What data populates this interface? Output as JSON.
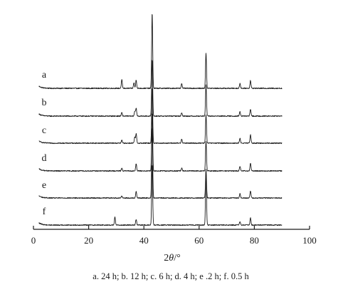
{
  "chart_data": {
    "type": "line",
    "subtype": "stacked-xrd-patterns",
    "title": "",
    "xlabel": "2θ/°",
    "ylabel": "",
    "xlim": [
      0,
      100
    ],
    "x_ticks": [
      0,
      20,
      40,
      60,
      80,
      100
    ],
    "x_tick_labels": [
      "0",
      "20",
      "40",
      "60",
      "80",
      "100"
    ],
    "x_range_plotted": [
      2,
      90
    ],
    "grid": false,
    "legend": "none",
    "series": [
      {
        "name": "a",
        "peaks": [
          {
            "x": 32.0,
            "intensity": 12
          },
          {
            "x": 36.4,
            "intensity": 8
          },
          {
            "x": 37.2,
            "intensity": 12
          },
          {
            "x": 43.0,
            "intensity": 106
          },
          {
            "x": 53.7,
            "intensity": 7
          },
          {
            "x": 62.5,
            "intensity": 49
          },
          {
            "x": 74.8,
            "intensity": 7
          },
          {
            "x": 78.6,
            "intensity": 11
          }
        ]
      },
      {
        "name": "b",
        "peaks": [
          {
            "x": 32.0,
            "intensity": 5
          },
          {
            "x": 36.7,
            "intensity": 7
          },
          {
            "x": 37.2,
            "intensity": 11
          },
          {
            "x": 43.0,
            "intensity": 80
          },
          {
            "x": 53.7,
            "intensity": 5
          },
          {
            "x": 62.5,
            "intensity": 44
          },
          {
            "x": 74.8,
            "intensity": 6
          },
          {
            "x": 78.6,
            "intensity": 10
          }
        ]
      },
      {
        "name": "c",
        "peaks": [
          {
            "x": 32.0,
            "intensity": 4
          },
          {
            "x": 36.7,
            "intensity": 8
          },
          {
            "x": 37.2,
            "intensity": 13
          },
          {
            "x": 43.0,
            "intensity": 78
          },
          {
            "x": 53.7,
            "intensity": 6
          },
          {
            "x": 62.5,
            "intensity": 40
          },
          {
            "x": 74.8,
            "intensity": 7
          },
          {
            "x": 78.6,
            "intensity": 12
          }
        ]
      },
      {
        "name": "d",
        "peaks": [
          {
            "x": 32.0,
            "intensity": 4
          },
          {
            "x": 37.2,
            "intensity": 10
          },
          {
            "x": 43.0,
            "intensity": 82
          },
          {
            "x": 53.7,
            "intensity": 4
          },
          {
            "x": 62.5,
            "intensity": 42
          },
          {
            "x": 74.8,
            "intensity": 6
          },
          {
            "x": 78.6,
            "intensity": 11
          }
        ]
      },
      {
        "name": "e",
        "peaks": [
          {
            "x": 32.0,
            "intensity": 3
          },
          {
            "x": 37.2,
            "intensity": 9
          },
          {
            "x": 43.0,
            "intensity": 100
          },
          {
            "x": 62.5,
            "intensity": 40
          },
          {
            "x": 74.8,
            "intensity": 6
          },
          {
            "x": 78.6,
            "intensity": 10
          }
        ]
      },
      {
        "name": "f",
        "peaks": [
          {
            "x": 29.5,
            "intensity": 11
          },
          {
            "x": 37.2,
            "intensity": 8
          },
          {
            "x": 43.0,
            "intensity": 85
          },
          {
            "x": 62.5,
            "intensity": 75
          },
          {
            "x": 74.8,
            "intensity": 5
          },
          {
            "x": 78.6,
            "intensity": 10
          }
        ]
      }
    ],
    "caption": "a. 24 h;  b. 12 h;  c. 6 h;  d. 4 h;  e .2 h;  f. 0.5 h"
  },
  "colors": {
    "line": "#1a1a1a",
    "background": "#ffffff"
  }
}
